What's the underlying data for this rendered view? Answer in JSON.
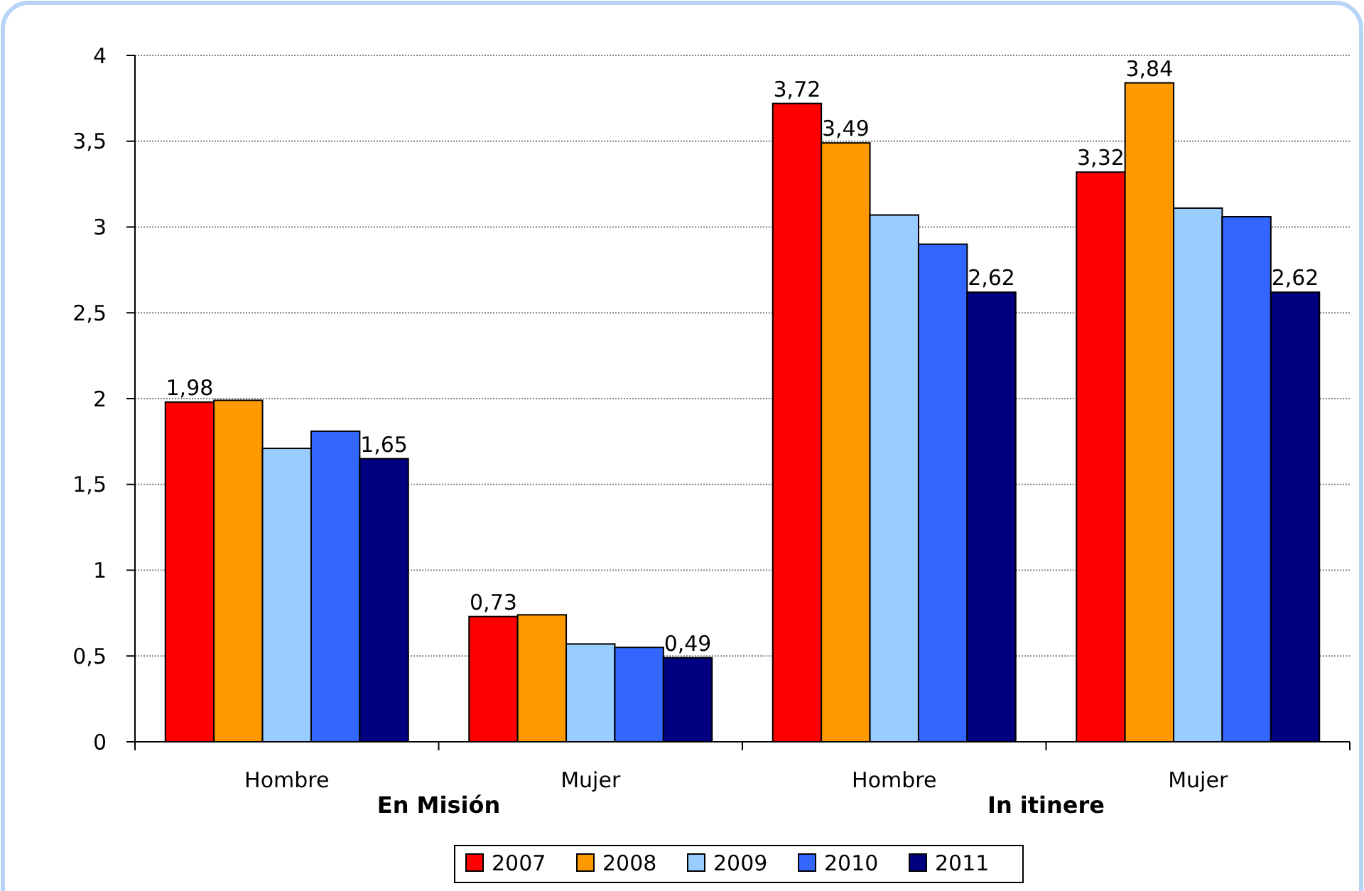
{
  "chart_data": {
    "type": "bar",
    "categories": [
      "Hombre",
      "Mujer",
      "Hombre",
      "Mujer"
    ],
    "annotations": [
      "En Misión",
      "In itinere"
    ],
    "series": [
      {
        "name": "2007",
        "color": "#ff0000",
        "values": [
          1.98,
          0.73,
          3.72,
          3.32
        ],
        "value_labels": [
          "1,98",
          "0,73",
          "3,72",
          "3,32"
        ]
      },
      {
        "name": "2008",
        "color": "#ff9900",
        "values": [
          1.99,
          0.74,
          3.49,
          3.84
        ],
        "value_labels": [
          null,
          null,
          "3,49",
          "3,84"
        ]
      },
      {
        "name": "2009",
        "color": "#99ccff",
        "values": [
          1.71,
          0.57,
          3.07,
          3.11
        ]
      },
      {
        "name": "2010",
        "color": "#3366ff",
        "values": [
          1.81,
          0.55,
          2.9,
          3.06
        ]
      },
      {
        "name": "2011",
        "color": "#000080",
        "values": [
          1.65,
          0.49,
          2.62,
          2.62
        ],
        "value_labels": [
          "1,65",
          "0,49",
          "2,62",
          "2,62"
        ]
      }
    ],
    "ylim": [
      0,
      4
    ],
    "yticks": [
      0,
      {
        "value": 0.5,
        "label": "0,5"
      },
      1,
      {
        "value": 1.5,
        "label": "1,5"
      },
      2,
      {
        "value": 2.5,
        "label": "2,5"
      },
      3,
      {
        "value": 3.5,
        "label": "3,5"
      },
      4
    ],
    "grid": "y",
    "legend": "bottom"
  }
}
